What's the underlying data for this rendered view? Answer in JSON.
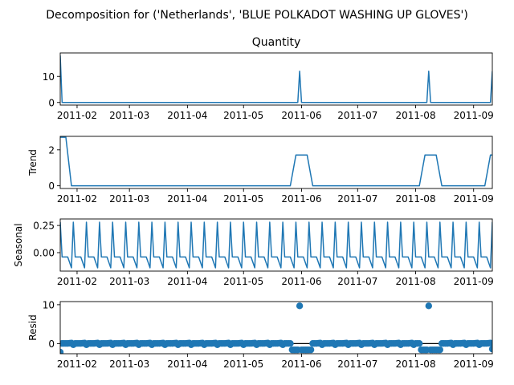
{
  "figure": {
    "suptitle": "Decomposition for ('Netherlands', 'BLUE POLKADOT WASHING UP GLOVES')"
  },
  "colors": {
    "line": "#1f77b4",
    "axis": "#000000",
    "background": "#ffffff"
  },
  "chart_data": [
    {
      "type": "line",
      "title": "Quantity",
      "ylabel": "",
      "x_range": [
        "2011-01-23",
        "2011-09-11"
      ],
      "ylim": [
        -1,
        19
      ],
      "y_ticks": [
        0,
        10
      ],
      "x_ticks": [
        "2011-02",
        "2011-03",
        "2011-04",
        "2011-05",
        "2011-06",
        "2011-07",
        "2011-08",
        "2011-09"
      ],
      "series": [
        {
          "x": [
            "2011-01-23",
            "2011-01-24",
            "2011-05-30",
            "2011-05-31",
            "2011-06-01",
            "2011-08-07",
            "2011-08-08",
            "2011-08-09",
            "2011-09-10",
            "2011-09-11"
          ],
          "values": [
            18,
            0,
            0,
            12,
            0,
            0,
            12,
            0,
            0,
            12
          ]
        }
      ]
    },
    {
      "type": "line",
      "title": "",
      "ylabel": "Trend",
      "x_range": [
        "2011-01-23",
        "2011-09-11"
      ],
      "ylim": [
        -0.15,
        2.75
      ],
      "y_ticks": [
        0,
        2
      ],
      "x_ticks": [
        "2011-02",
        "2011-03",
        "2011-04",
        "2011-05",
        "2011-06",
        "2011-07",
        "2011-08",
        "2011-09"
      ],
      "series": [
        {
          "x": [
            "2011-01-26",
            "2011-01-29",
            "2011-05-26",
            "2011-05-29",
            "2011-06-04",
            "2011-06-07",
            "2011-08-03",
            "2011-08-06",
            "2011-08-12",
            "2011-08-15",
            "2011-09-07",
            "2011-09-10"
          ],
          "values": [
            2.7,
            0,
            0,
            1.71,
            1.71,
            0,
            0,
            1.71,
            1.71,
            0,
            0,
            1.71
          ]
        }
      ]
    },
    {
      "type": "line",
      "title": "",
      "ylabel": "Seasonal",
      "x_range": [
        "2011-01-23",
        "2011-09-11"
      ],
      "ylim": [
        -0.17,
        0.31
      ],
      "y_ticks": [
        0.25,
        0.0
      ],
      "x_ticks": [
        "2011-02",
        "2011-03",
        "2011-04",
        "2011-05",
        "2011-06",
        "2011-07",
        "2011-08",
        "2011-09"
      ],
      "period_days": 7,
      "weekly_pattern": [
        0.28,
        -0.04,
        -0.04,
        -0.04,
        -0.04,
        -0.09,
        -0.14
      ]
    },
    {
      "type": "scatter",
      "title": "",
      "ylabel": "Resid",
      "x_range": [
        "2011-01-23",
        "2011-09-11"
      ],
      "ylim": [
        -2.6,
        10.8
      ],
      "y_ticks": [
        0,
        10
      ],
      "x_ticks": [
        "2011-02",
        "2011-03",
        "2011-04",
        "2011-05",
        "2011-06",
        "2011-07",
        "2011-08",
        "2011-09"
      ],
      "baseline": 0,
      "residual_pattern": [
        -0.28,
        0.04,
        0.04,
        0.04,
        0.04,
        0.09,
        0.14
      ],
      "outliers": [
        {
          "x": "2011-01-23",
          "y": -2.2
        },
        {
          "x": "2011-05-31",
          "y": 9.7
        },
        {
          "x": "2011-08-08",
          "y": 9.7
        },
        {
          "x": "2011-09-11",
          "y": -1.4
        }
      ],
      "dips": [
        {
          "from": "2011-05-27",
          "to": "2011-06-06",
          "y": -1.6
        },
        {
          "from": "2011-08-04",
          "to": "2011-08-14",
          "y": -1.6
        }
      ]
    }
  ]
}
